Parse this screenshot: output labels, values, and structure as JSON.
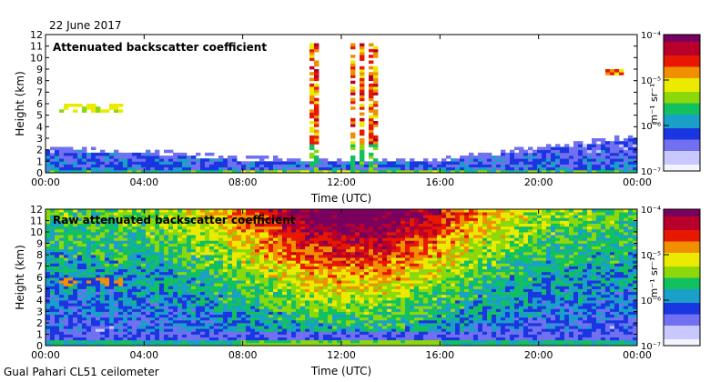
{
  "date_label": "22 June 2017",
  "footer": "Gual Pahari CL51 ceilometer",
  "colors": {
    "scale": [
      "#f4f4ff",
      "#c8c8ff",
      "#7070f0",
      "#1a36e0",
      "#1aa0c8",
      "#12c060",
      "#8cd80a",
      "#ecea00",
      "#f09000",
      "#e81800",
      "#b8002a",
      "#7a0060"
    ]
  },
  "chart_data": [
    {
      "type": "heatmap",
      "title": "Attenuated backscatter coefficient",
      "xlabel": "Time (UTC)",
      "ylabel": "Height (km)",
      "x_ticks": [
        "00:00",
        "04:00",
        "08:00",
        "12:00",
        "16:00",
        "20:00",
        "00:00"
      ],
      "xlim_hours": [
        0,
        24
      ],
      "y_ticks": [
        "0",
        "1",
        "2",
        "3",
        "4",
        "5",
        "6",
        "7",
        "8",
        "9",
        "10",
        "11",
        "12"
      ],
      "ylim_km": [
        0,
        12
      ],
      "colorbar": {
        "unit": "m⁻¹ sr⁻¹",
        "ticks": [
          "10⁻⁴",
          "10⁻⁵",
          "10⁻⁶",
          "10⁻⁷"
        ],
        "log_range": [
          -7,
          -4
        ],
        "scale": "log"
      },
      "features": {
        "boundary_layer_top_km": [
          [
            0,
            2.0
          ],
          [
            4,
            1.7
          ],
          [
            8,
            1.1
          ],
          [
            12,
            0.9
          ],
          [
            16,
            1.0
          ],
          [
            20,
            2.0
          ],
          [
            24,
            3.0
          ]
        ],
        "elevated_layer_km": {
          "time_hours": [
            0.6,
            3.2
          ],
          "height_km": [
            5.2,
            5.9
          ]
        },
        "high_cloud_km": {
          "time_hours": [
            22.7,
            23.5
          ],
          "height_km": 8.7
        },
        "convective_plumes_time_hours": [
          10.9,
          12.4,
          12.8,
          13.3
        ]
      }
    },
    {
      "type": "heatmap",
      "title": "Raw attenuated backscatter coefficient",
      "xlabel": "Time (UTC)",
      "ylabel": "Height (km)",
      "x_ticks": [
        "00:00",
        "04:00",
        "08:00",
        "12:00",
        "16:00",
        "20:00",
        "00:00"
      ],
      "xlim_hours": [
        0,
        24
      ],
      "y_ticks": [
        "0",
        "1",
        "2",
        "3",
        "4",
        "5",
        "6",
        "7",
        "8",
        "9",
        "10",
        "11",
        "12"
      ],
      "ylim_km": [
        0,
        12
      ],
      "colorbar": {
        "unit": "m⁻¹ sr⁻¹",
        "ticks": [
          "10⁻⁴",
          "10⁻⁵",
          "10⁻⁶",
          "10⁻⁷"
        ],
        "log_range": [
          -7,
          -4
        ],
        "scale": "log"
      },
      "features": {
        "noise_peak_time_hours": 12.5,
        "elevated_layer_km": {
          "time_hours": [
            0.6,
            3.2
          ],
          "height_km": [
            5.2,
            5.9
          ]
        }
      }
    }
  ]
}
